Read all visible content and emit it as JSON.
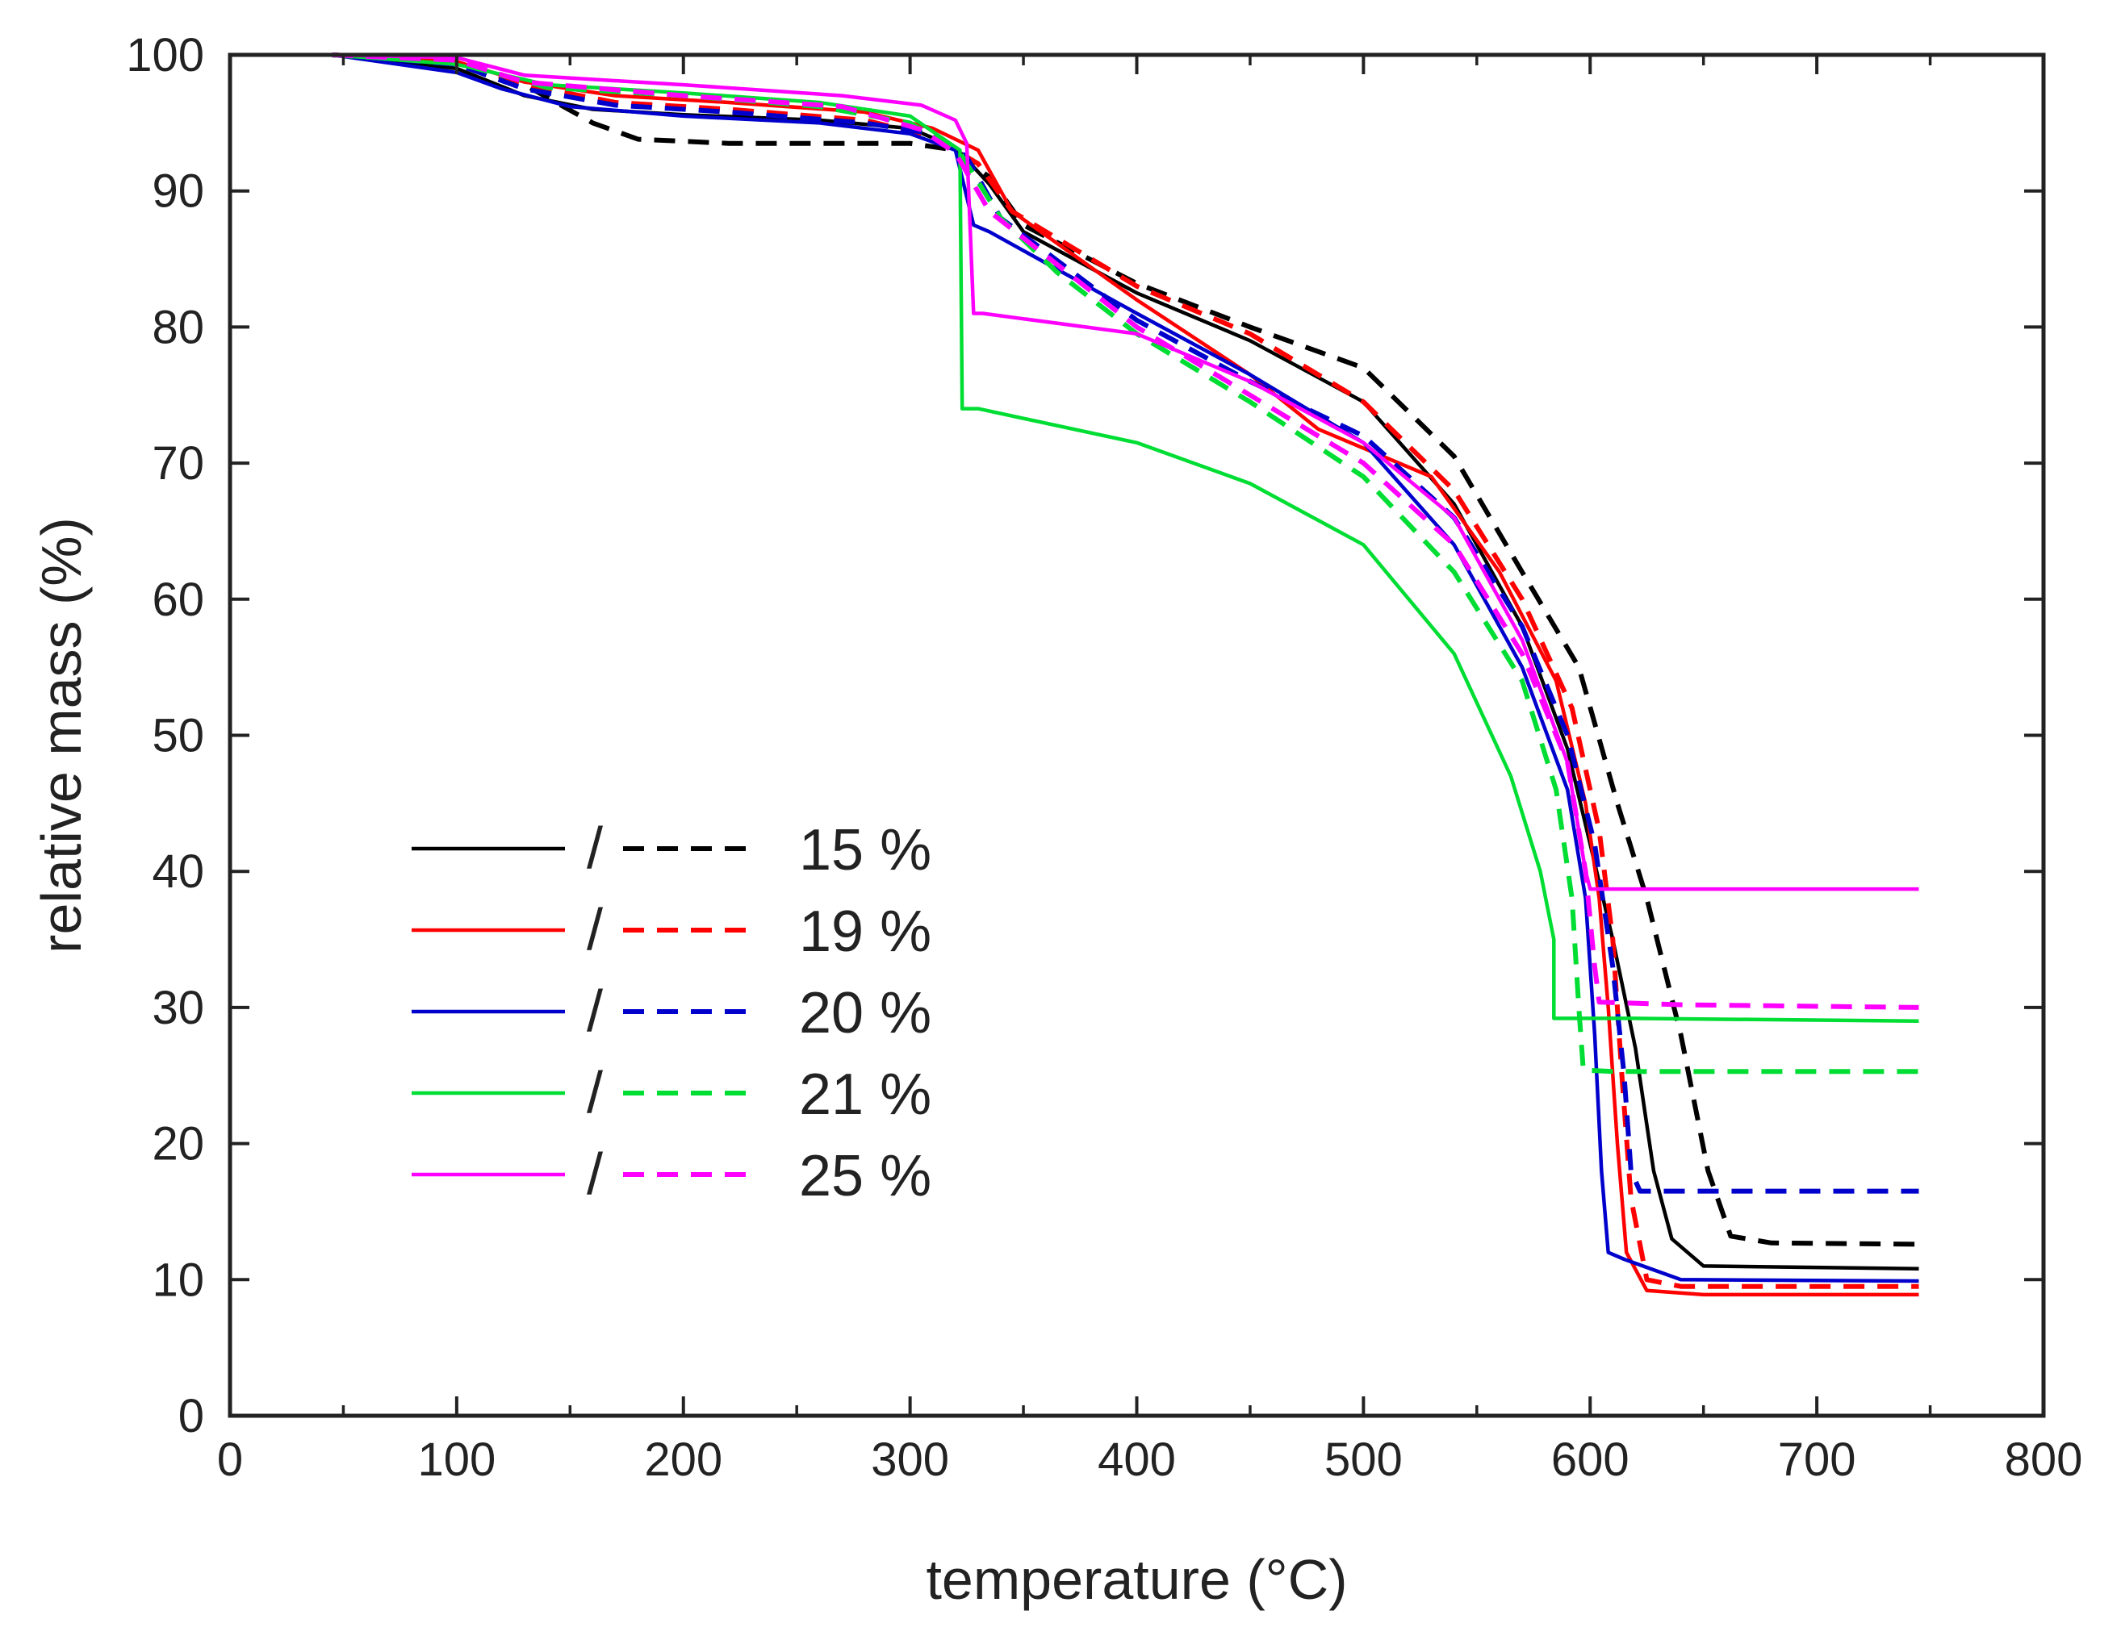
{
  "chart_data": {
    "type": "line",
    "title": "",
    "xlabel": "temperature (°C)",
    "ylabel": "relative mass (%)",
    "xlim": [
      0,
      800
    ],
    "ylim": [
      0,
      100
    ],
    "x_ticks": [
      0,
      100,
      200,
      300,
      400,
      500,
      600,
      700,
      800
    ],
    "y_ticks": [
      0,
      10,
      20,
      30,
      40,
      50,
      60,
      70,
      80,
      90,
      100
    ],
    "legend": {
      "placement": "left",
      "separator": "/",
      "entries": [
        {
          "label": "15 %",
          "color": "#000000"
        },
        {
          "label": "19 %",
          "color": "#ff0000"
        },
        {
          "label": "20 %",
          "color": "#0000cc"
        },
        {
          "label": "21 %",
          "color": "#00dd33"
        },
        {
          "label": "25 %",
          "color": "#ff00ff"
        }
      ]
    },
    "series": [
      {
        "name": "15 % solid",
        "color": "#000000",
        "style": "solid",
        "points": [
          [
            45,
            100
          ],
          [
            100,
            99
          ],
          [
            130,
            97
          ],
          [
            160,
            96
          ],
          [
            200,
            95.6
          ],
          [
            260,
            95.2
          ],
          [
            300,
            94.6
          ],
          [
            320,
            93.2
          ],
          [
            335,
            90.5
          ],
          [
            350,
            87
          ],
          [
            400,
            82.5
          ],
          [
            450,
            79
          ],
          [
            500,
            74.5
          ],
          [
            540,
            67
          ],
          [
            570,
            58
          ],
          [
            590,
            49
          ],
          [
            600,
            42
          ],
          [
            610,
            35
          ],
          [
            620,
            27
          ],
          [
            628,
            18
          ],
          [
            636,
            13
          ],
          [
            650,
            11
          ],
          [
            745,
            10.8
          ]
        ]
      },
      {
        "name": "15 % dashed",
        "color": "#000000",
        "style": "dashed",
        "points": [
          [
            45,
            100
          ],
          [
            100,
            99.5
          ],
          [
            130,
            97.8
          ],
          [
            160,
            95
          ],
          [
            180,
            93.8
          ],
          [
            220,
            93.5
          ],
          [
            300,
            93.5
          ],
          [
            320,
            93
          ],
          [
            335,
            91
          ],
          [
            350,
            87.5
          ],
          [
            400,
            83.2
          ],
          [
            450,
            80
          ],
          [
            500,
            77
          ],
          [
            540,
            70.5
          ],
          [
            570,
            62
          ],
          [
            595,
            55
          ],
          [
            612,
            45
          ],
          [
            625,
            38
          ],
          [
            640,
            28
          ],
          [
            652,
            18
          ],
          [
            662,
            13.2
          ],
          [
            680,
            12.7
          ],
          [
            745,
            12.6
          ]
        ]
      },
      {
        "name": "19 % solid",
        "color": "#ff0000",
        "style": "solid",
        "points": [
          [
            45,
            100
          ],
          [
            100,
            99.5
          ],
          [
            130,
            98
          ],
          [
            170,
            97
          ],
          [
            220,
            96.5
          ],
          [
            280,
            95.8
          ],
          [
            310,
            94.6
          ],
          [
            330,
            93
          ],
          [
            345,
            88.5
          ],
          [
            400,
            82
          ],
          [
            450,
            76.5
          ],
          [
            480,
            72.5
          ],
          [
            530,
            69
          ],
          [
            560,
            62
          ],
          [
            585,
            54
          ],
          [
            598,
            45
          ],
          [
            604,
            38
          ],
          [
            608,
            30
          ],
          [
            612,
            20
          ],
          [
            616,
            12
          ],
          [
            625,
            9.2
          ],
          [
            650,
            8.9
          ],
          [
            745,
            8.9
          ]
        ]
      },
      {
        "name": "19 % dashed",
        "color": "#ff0000",
        "style": "dashed",
        "points": [
          [
            45,
            100
          ],
          [
            100,
            99.5
          ],
          [
            130,
            97.8
          ],
          [
            170,
            96.5
          ],
          [
            220,
            96
          ],
          [
            280,
            95.2
          ],
          [
            310,
            94
          ],
          [
            330,
            92
          ],
          [
            345,
            88.5
          ],
          [
            400,
            83
          ],
          [
            450,
            79.5
          ],
          [
            500,
            74.5
          ],
          [
            540,
            68
          ],
          [
            570,
            60
          ],
          [
            592,
            52
          ],
          [
            604,
            43
          ],
          [
            610,
            35
          ],
          [
            614,
            25
          ],
          [
            618,
            16
          ],
          [
            625,
            10
          ],
          [
            640,
            9.5
          ],
          [
            745,
            9.5
          ]
        ]
      },
      {
        "name": "20 % solid",
        "color": "#0000cc",
        "style": "solid",
        "points": [
          [
            45,
            100
          ],
          [
            100,
            98.7
          ],
          [
            120,
            97.5
          ],
          [
            150,
            96.2
          ],
          [
            200,
            95.5
          ],
          [
            260,
            95
          ],
          [
            300,
            94.2
          ],
          [
            320,
            93
          ],
          [
            328,
            87.5
          ],
          [
            335,
            87
          ],
          [
            400,
            81
          ],
          [
            450,
            76.5
          ],
          [
            500,
            71.5
          ],
          [
            540,
            64
          ],
          [
            570,
            55
          ],
          [
            590,
            46
          ],
          [
            598,
            38
          ],
          [
            602,
            28
          ],
          [
            605,
            18
          ],
          [
            608,
            12
          ],
          [
            615,
            11.5
          ],
          [
            640,
            10
          ],
          [
            745,
            9.9
          ]
        ]
      },
      {
        "name": "20 % dashed",
        "color": "#0000cc",
        "style": "dashed",
        "points": [
          [
            45,
            100
          ],
          [
            100,
            99.3
          ],
          [
            130,
            97.5
          ],
          [
            170,
            96.3
          ],
          [
            220,
            95.8
          ],
          [
            280,
            95
          ],
          [
            310,
            94.2
          ],
          [
            325,
            92.5
          ],
          [
            340,
            88
          ],
          [
            400,
            80.5
          ],
          [
            450,
            76
          ],
          [
            500,
            72
          ],
          [
            540,
            66
          ],
          [
            570,
            58
          ],
          [
            590,
            50
          ],
          [
            602,
            42
          ],
          [
            610,
            33
          ],
          [
            615,
            25
          ],
          [
            618,
            18
          ],
          [
            622,
            16.5
          ],
          [
            745,
            16.5
          ]
        ]
      },
      {
        "name": "21 % solid",
        "color": "#00dd33",
        "style": "solid",
        "points": [
          [
            45,
            100
          ],
          [
            100,
            99.3
          ],
          [
            140,
            97.8
          ],
          [
            200,
            97.2
          ],
          [
            260,
            96.5
          ],
          [
            300,
            95.5
          ],
          [
            322,
            93
          ],
          [
            323,
            74
          ],
          [
            330,
            74
          ],
          [
            400,
            71.5
          ],
          [
            450,
            68.5
          ],
          [
            500,
            64
          ],
          [
            540,
            56
          ],
          [
            565,
            47
          ],
          [
            578,
            40
          ],
          [
            584,
            35
          ],
          [
            584,
            29.2
          ],
          [
            620,
            29.2
          ],
          [
            745,
            29
          ]
        ]
      },
      {
        "name": "21 % dashed",
        "color": "#00dd33",
        "style": "dashed",
        "points": [
          [
            45,
            100
          ],
          [
            100,
            99.4
          ],
          [
            140,
            97.6
          ],
          [
            200,
            97
          ],
          [
            260,
            96.2
          ],
          [
            300,
            95
          ],
          [
            322,
            92.8
          ],
          [
            340,
            88
          ],
          [
            365,
            84
          ],
          [
            400,
            79.5
          ],
          [
            450,
            74.5
          ],
          [
            500,
            69
          ],
          [
            540,
            62
          ],
          [
            570,
            54
          ],
          [
            585,
            46
          ],
          [
            592,
            38
          ],
          [
            595,
            30
          ],
          [
            597,
            25.4
          ],
          [
            610,
            25.3
          ],
          [
            745,
            25.3
          ]
        ]
      },
      {
        "name": "25 % solid",
        "color": "#ff00ff",
        "style": "solid",
        "points": [
          [
            45,
            100
          ],
          [
            100,
            99.8
          ],
          [
            130,
            98.5
          ],
          [
            200,
            97.8
          ],
          [
            270,
            97
          ],
          [
            305,
            96.3
          ],
          [
            320,
            95.2
          ],
          [
            325,
            93.5
          ],
          [
            328,
            81
          ],
          [
            332,
            81
          ],
          [
            400,
            79.5
          ],
          [
            450,
            76
          ],
          [
            500,
            71.5
          ],
          [
            540,
            66
          ],
          [
            570,
            57
          ],
          [
            590,
            48
          ],
          [
            598,
            40
          ],
          [
            600,
            38.7
          ],
          [
            640,
            38.7
          ],
          [
            745,
            38.7
          ]
        ]
      },
      {
        "name": "25 % dashed",
        "color": "#ff00ff",
        "style": "dashed",
        "points": [
          [
            45,
            100
          ],
          [
            100,
            99.6
          ],
          [
            130,
            98
          ],
          [
            200,
            97
          ],
          [
            270,
            96.2
          ],
          [
            305,
            94.5
          ],
          [
            320,
            92.8
          ],
          [
            335,
            88.5
          ],
          [
            400,
            80
          ],
          [
            450,
            75
          ],
          [
            500,
            70
          ],
          [
            540,
            64
          ],
          [
            570,
            56
          ],
          [
            590,
            48
          ],
          [
            598,
            40
          ],
          [
            602,
            33
          ],
          [
            604,
            30.4
          ],
          [
            640,
            30.2
          ],
          [
            745,
            30
          ]
        ]
      }
    ]
  }
}
